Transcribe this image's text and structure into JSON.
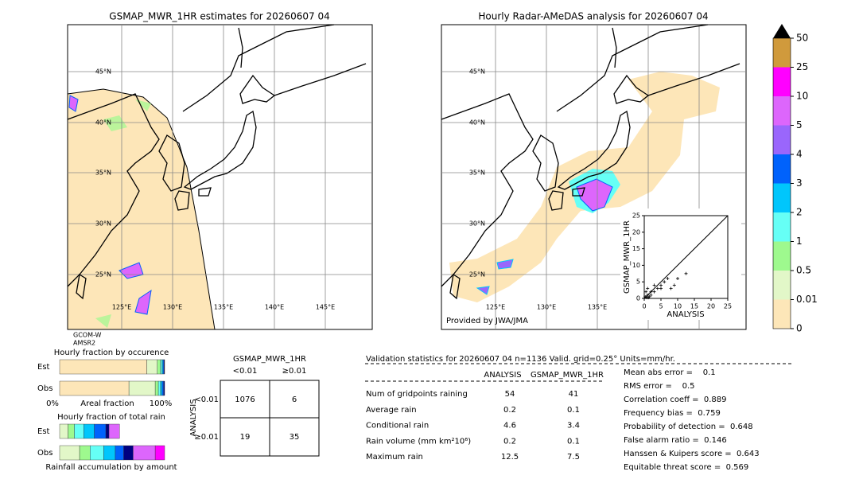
{
  "maps": [
    {
      "title": "GSMAP_MWR_1HR estimates for 20260607 04",
      "lat_labels": [
        "45°N",
        "40°N",
        "35°N",
        "30°N",
        "25°N"
      ],
      "lon_labels": [
        "125°E",
        "130°E",
        "135°E",
        "140°E",
        "145°E"
      ],
      "satellite": [
        "GCOM-W",
        "AMSR2"
      ]
    },
    {
      "title": "Hourly Radar-AMeDAS analysis for 20260607 04",
      "lat_labels": [
        "45°N",
        "40°N",
        "35°N",
        "30°N",
        "25°N"
      ],
      "lon_labels": [
        "125°E",
        "130°E",
        "135°E"
      ],
      "credit": "Provided by JWA/JMA"
    }
  ],
  "scatter": {
    "type": "scatter",
    "xlabel": "ANALYSIS",
    "ylabel": "GSMAP_MWR_1HR",
    "xlim": [
      0,
      25
    ],
    "ylim": [
      0,
      25
    ],
    "xticks": [
      0,
      5,
      10,
      15,
      20,
      25
    ],
    "yticks": [
      0,
      5,
      10,
      15,
      20,
      25
    ],
    "x": [
      0,
      0.3,
      0.6,
      1,
      1,
      1.5,
      2,
      2,
      3,
      3,
      4,
      5,
      5,
      6,
      7,
      8,
      9,
      10,
      12.5,
      0.5,
      1.2
    ],
    "y": [
      0,
      0.5,
      0.3,
      1,
      3,
      0.5,
      1,
      2,
      2,
      4,
      3,
      3,
      4,
      5,
      6,
      3,
      4,
      6,
      7.5,
      2,
      0.2
    ]
  },
  "colorbar": {
    "labels": [
      0,
      0.01,
      0.5,
      1,
      2,
      3,
      4,
      5,
      10,
      25,
      50
    ],
    "colors": [
      "#fde6b8",
      "#e2f7c8",
      "#9ef98e",
      "#66fff6",
      "#00c6fc",
      "#0062fc",
      "#9a66fc",
      "#dd66fc",
      "#ff00ff",
      "#d09a3c"
    ],
    "extend_color": "#000000"
  },
  "occurrence": {
    "title": "Hourly fraction by occurence",
    "xlabel": "Areal fraction",
    "xtick_labels": [
      "0%",
      "100%"
    ],
    "rows": [
      {
        "label": "Est",
        "values": [
          83,
          10,
          3,
          1.5,
          1,
          1,
          0.5
        ],
        "colors": [
          "#fde6b8",
          "#e2f7c8",
          "#9ef98e",
          "#66fff6",
          "#00c6fc",
          "#0062fc",
          "#000080"
        ]
      },
      {
        "label": "Obs",
        "values": [
          66,
          25,
          3,
          2,
          1.5,
          1.5,
          1
        ],
        "colors": [
          "#fde6b8",
          "#e2f7c8",
          "#9ef98e",
          "#66fff6",
          "#00c6fc",
          "#0062fc",
          "#000080"
        ]
      }
    ]
  },
  "total": {
    "title": "Hourly fraction of total rain",
    "xlabel": "Rainfall accumulation by amount",
    "rows": [
      {
        "label": "Est",
        "values": [
          8,
          6,
          9,
          10,
          11,
          3,
          10
        ],
        "colors": [
          "#e2f7c8",
          "#9ef98e",
          "#66fff6",
          "#00c6fc",
          "#0062fc",
          "#000080",
          "#dd66fc"
        ]
      },
      {
        "label": "Obs",
        "values": [
          19,
          10,
          13,
          11,
          8,
          9,
          21,
          9
        ],
        "colors": [
          "#e2f7c8",
          "#9ef98e",
          "#66fff6",
          "#00c6fc",
          "#0062fc",
          "#000080",
          "#dd66fc",
          "#ff00ff"
        ]
      }
    ]
  },
  "contingency": {
    "title": "GSMAP_MWR_1HR",
    "col_labels": [
      "<0.01",
      "≥0.01"
    ],
    "row_title": "ANALYSIS",
    "row_labels": [
      "<0.01",
      "≥0.01"
    ],
    "cells": [
      [
        1076,
        6
      ],
      [
        19,
        35
      ]
    ]
  },
  "validation": {
    "header": "Validation statistics for 20260607 04  n=1136 Valid. grid=0.25° Units=mm/hr.",
    "columns": [
      "ANALYSIS",
      "GSMAP_MWR_1HR"
    ],
    "rows": [
      {
        "label": "Num of gridpoints raining",
        "values": [
          54,
          41
        ]
      },
      {
        "label": "Average rain",
        "values": [
          0.2,
          0.1
        ]
      },
      {
        "label": "Conditional rain",
        "values": [
          4.6,
          3.4
        ]
      },
      {
        "label": "Rain volume (mm km²10⁶)",
        "values": [
          0.2,
          0.1
        ]
      },
      {
        "label": "Maximum rain",
        "values": [
          12.5,
          7.5
        ]
      }
    ],
    "scores": [
      "Mean abs error =    0.1",
      "RMS error =    0.5",
      "Correlation coeff =  0.889",
      "Frequency bias =  0.759",
      "Probability of detection =  0.648",
      "False alarm ratio =  0.146",
      "Hanssen & Kuipers score =  0.643",
      "Equitable threat score =  0.569"
    ]
  }
}
